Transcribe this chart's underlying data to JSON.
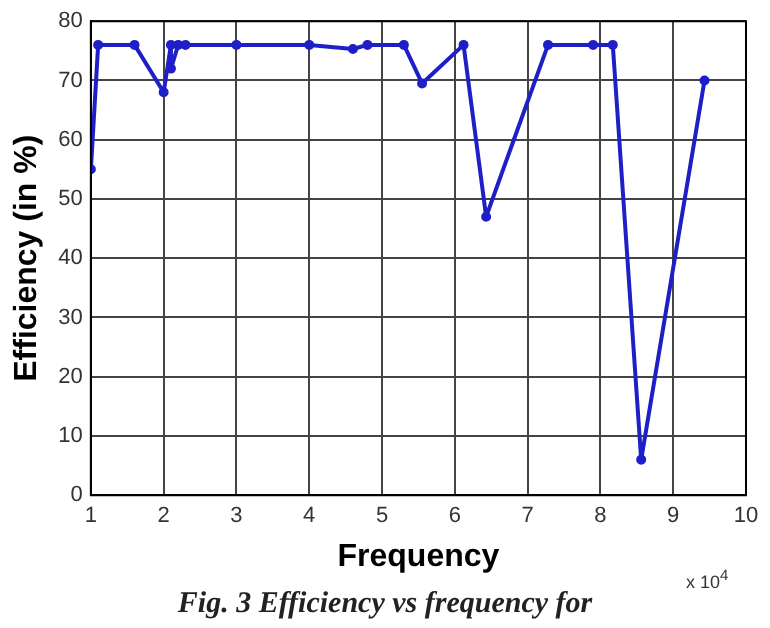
{
  "chart_data": {
    "type": "line",
    "xlabel": "Frequency",
    "ylabel": "Efficiency (in %)",
    "x": [
      1.0,
      1.1,
      1.6,
      2.0,
      2.1,
      2.1,
      2.2,
      2.3,
      3.0,
      4.0,
      4.6,
      4.8,
      5.3,
      5.55,
      6.12,
      6.43,
      7.28,
      7.9,
      8.17,
      8.56,
      9.43
    ],
    "series": [
      {
        "color": "#1f1fc8",
        "values": [
          55,
          76,
          76,
          68,
          76,
          72,
          76,
          76,
          76,
          76,
          75.3,
          76,
          76,
          69.5,
          76,
          47,
          76,
          76,
          76,
          6,
          70
        ]
      }
    ],
    "xlim": [
      1,
      10
    ],
    "xticks": [
      1,
      2,
      3,
      4,
      5,
      6,
      7,
      8,
      9,
      10
    ],
    "ylim": [
      0,
      80
    ],
    "yticks": [
      0,
      10,
      20,
      30,
      40,
      50,
      60,
      70,
      80
    ],
    "grid": true,
    "legend": false,
    "marker": "circle",
    "line_style": "solid",
    "annotations": [
      "x 10$^{4}$",
      "Fig. 3 Efficiency vs frequency for"
    ]
  }
}
